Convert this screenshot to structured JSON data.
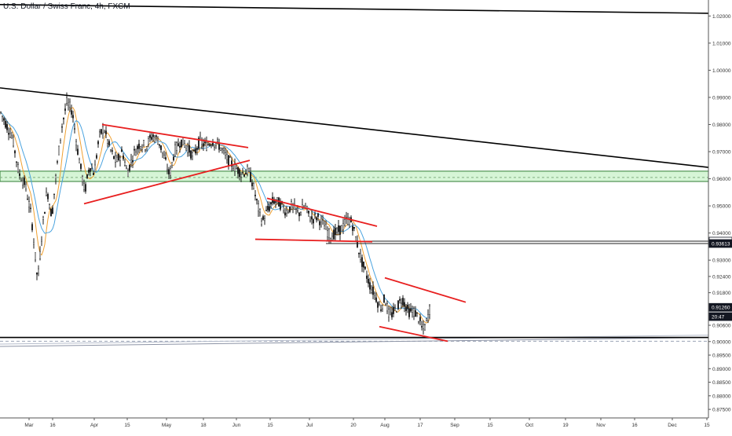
{
  "header": {
    "symbol_title": "U.S. Dollar / Swiss Franc, 4h, FXCM"
  },
  "chart_data": {
    "type": "candlestick",
    "title": "U.S. Dollar / Swiss Franc, 4h, FXCM",
    "ylim": [
      0.873,
      1.023
    ],
    "y_ticks": [
      "1.02000",
      "1.01000",
      "1.00000",
      "0.99000",
      "0.98000",
      "0.97000",
      "0.96000",
      "0.95000",
      "0.94000",
      "0.93000",
      "0.92400",
      "0.91800",
      "0.90600",
      "0.90000",
      "0.89500",
      "0.89000",
      "0.88500",
      "0.88000",
      "0.87500"
    ],
    "x_ticks": [
      "Mar",
      "16",
      "Apr",
      "15",
      "May",
      "18",
      "Jun",
      "15",
      "Jul",
      "20",
      "Aug",
      "17",
      "Sep",
      "15",
      "Oct",
      "19",
      "Nov",
      "16",
      "Dec",
      "15"
    ],
    "price_labels": [
      {
        "text": "0.93700",
        "value": 0.937,
        "style": "light"
      },
      {
        "text": "0.93613",
        "value": 0.93613,
        "style": "dark"
      },
      {
        "text": "0.91260",
        "value": 0.9126,
        "style": "dark"
      },
      {
        "text": "20:47",
        "value": 0.9092,
        "style": "dark"
      }
    ],
    "price_path": [
      [
        0,
        0.985
      ],
      [
        8,
        0.98
      ],
      [
        16,
        0.975
      ],
      [
        24,
        0.962
      ],
      [
        32,
        0.958
      ],
      [
        40,
        0.946
      ],
      [
        48,
        0.922
      ],
      [
        54,
        0.942
      ],
      [
        60,
        0.956
      ],
      [
        66,
        0.946
      ],
      [
        72,
        0.963
      ],
      [
        78,
        0.978
      ],
      [
        85,
        0.988
      ],
      [
        92,
        0.985
      ],
      [
        98,
        0.972
      ],
      [
        104,
        0.962
      ],
      [
        108,
        0.955
      ],
      [
        114,
        0.965
      ],
      [
        120,
        0.962
      ],
      [
        126,
        0.975
      ],
      [
        132,
        0.979
      ],
      [
        140,
        0.971
      ],
      [
        148,
        0.966
      ],
      [
        156,
        0.97
      ],
      [
        162,
        0.962
      ],
      [
        170,
        0.969
      ],
      [
        178,
        0.973
      ],
      [
        186,
        0.972
      ],
      [
        194,
        0.976
      ],
      [
        202,
        0.974
      ],
      [
        210,
        0.967
      ],
      [
        216,
        0.961
      ],
      [
        222,
        0.97
      ],
      [
        230,
        0.974
      ],
      [
        238,
        0.972
      ],
      [
        246,
        0.968
      ],
      [
        254,
        0.974
      ],
      [
        262,
        0.972
      ],
      [
        270,
        0.974
      ],
      [
        280,
        0.972
      ],
      [
        290,
        0.967
      ],
      [
        300,
        0.964
      ],
      [
        308,
        0.962
      ],
      [
        316,
        0.963
      ],
      [
        322,
        0.958
      ],
      [
        328,
        0.95
      ],
      [
        334,
        0.944
      ],
      [
        340,
        0.948
      ],
      [
        348,
        0.952
      ],
      [
        356,
        0.951
      ],
      [
        364,
        0.948
      ],
      [
        372,
        0.95
      ],
      [
        380,
        0.947
      ],
      [
        388,
        0.95
      ],
      [
        396,
        0.945
      ],
      [
        404,
        0.946
      ],
      [
        412,
        0.943
      ],
      [
        420,
        0.939
      ],
      [
        428,
        0.94
      ],
      [
        436,
        0.942
      ],
      [
        442,
        0.945
      ],
      [
        448,
        0.944
      ],
      [
        454,
        0.937
      ],
      [
        460,
        0.93
      ],
      [
        466,
        0.925
      ],
      [
        472,
        0.92
      ],
      [
        478,
        0.917
      ],
      [
        484,
        0.912
      ],
      [
        490,
        0.916
      ],
      [
        496,
        0.909
      ],
      [
        504,
        0.912
      ],
      [
        512,
        0.916
      ],
      [
        520,
        0.911
      ],
      [
        528,
        0.911
      ],
      [
        534,
        0.908
      ],
      [
        538,
        0.904
      ],
      [
        542,
        0.906
      ],
      [
        548,
        0.913
      ]
    ],
    "drawings": [
      {
        "kind": "black-trendline",
        "from": [
          0,
          0.9935
        ],
        "to": [
          902,
          0.9642
        ]
      },
      {
        "kind": "black-trendline",
        "from": [
          0,
          1.0242
        ],
        "to": [
          902,
          1.021
        ]
      },
      {
        "kind": "black-horizontal",
        "y": 0.9015
      },
      {
        "kind": "grey-horizontal",
        "y": 0.9001
      },
      {
        "kind": "grey-diagonal",
        "from": [
          0,
          0.8982
        ],
        "to": [
          902,
          0.9015
        ]
      },
      {
        "kind": "red-triangle-apr-jun",
        "upper": [
          [
            130,
            0.98
          ],
          [
            316,
            0.9715
          ]
        ],
        "lower": [
          [
            107,
            0.9508
          ],
          [
            318,
            0.9668
          ]
        ]
      },
      {
        "kind": "red-channel-jun-jul",
        "upper": [
          [
            340,
            0.9528
          ],
          [
            480,
            0.9425
          ]
        ],
        "lower": [
          [
            325,
            0.9377
          ],
          [
            474,
            0.9368
          ]
        ]
      },
      {
        "kind": "red-wedge-aug",
        "upper": [
          [
            490,
            0.9235
          ],
          [
            593,
            0.9145
          ]
        ],
        "lower": [
          [
            483,
            0.9055
          ],
          [
            570,
            0.9001
          ]
        ]
      }
    ]
  },
  "colors": {
    "support_zone_fill": "#d6f5d6",
    "support_zone_border": "#2e7d32",
    "trendline_red": "#e81f1f",
    "trendline_black": "#000000",
    "ma_fast": "#f0a030",
    "ma_slow": "#4aa3df",
    "candle": "#1a1a1a"
  }
}
